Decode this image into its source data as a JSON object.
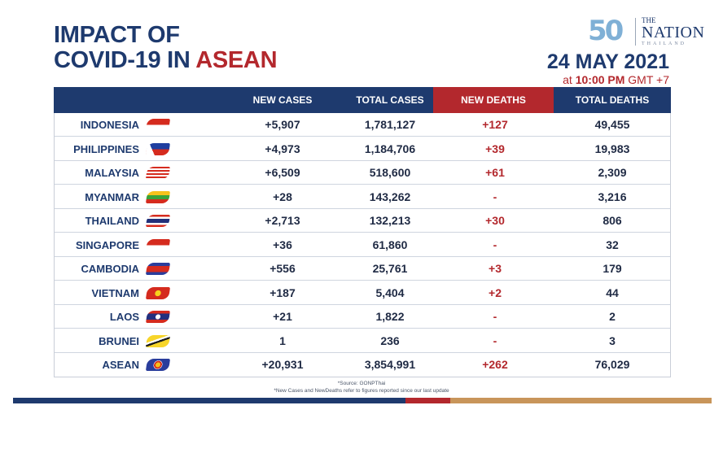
{
  "title": {
    "line1": "IMPACT OF",
    "line2_pre": "COVID-19 IN ",
    "line2_red": "ASEAN"
  },
  "logo": {
    "fifty": "50",
    "the": "THE",
    "nation": "NATION",
    "thailand": "THAILAND"
  },
  "date": {
    "main": "24 MAY 2021",
    "at": "at ",
    "time": "10:00 PM",
    "gmt": " GMT +7"
  },
  "columns": {
    "new_cases": "NEW CASES",
    "total_cases": "TOTAL CASES",
    "new_deaths": "NEW DEATHS",
    "total_deaths": "TOTAL DEATHS"
  },
  "rows": [
    {
      "country": "INDONESIA",
      "flag": "indonesia-flag-icon",
      "new_cases": "+5,907",
      "total_cases": "1,781,127",
      "new_deaths": "+127",
      "total_deaths": "49,455"
    },
    {
      "country": "PHILIPPINES",
      "flag": "philippines-flag-icon",
      "new_cases": "+4,973",
      "total_cases": "1,184,706",
      "new_deaths": "+39",
      "total_deaths": "19,983"
    },
    {
      "country": "MALAYSIA",
      "flag": "malaysia-flag-icon",
      "new_cases": "+6,509",
      "total_cases": "518,600",
      "new_deaths": "+61",
      "total_deaths": "2,309"
    },
    {
      "country": "MYANMAR",
      "flag": "myanmar-flag-icon",
      "new_cases": "+28",
      "total_cases": "143,262",
      "new_deaths": "-",
      "total_deaths": "3,216"
    },
    {
      "country": "THAILAND",
      "flag": "thailand-flag-icon",
      "new_cases": "+2,713",
      "total_cases": "132,213",
      "new_deaths": "+30",
      "total_deaths": "806"
    },
    {
      "country": "SINGAPORE",
      "flag": "singapore-flag-icon",
      "new_cases": "+36",
      "total_cases": "61,860",
      "new_deaths": "-",
      "total_deaths": "32"
    },
    {
      "country": "CAMBODIA",
      "flag": "cambodia-flag-icon",
      "new_cases": "+556",
      "total_cases": "25,761",
      "new_deaths": "+3",
      "total_deaths": "179"
    },
    {
      "country": "VIETNAM",
      "flag": "vietnam-flag-icon",
      "new_cases": "+187",
      "total_cases": "5,404",
      "new_deaths": "+2",
      "total_deaths": "44"
    },
    {
      "country": "LAOS",
      "flag": "laos-flag-icon",
      "new_cases": "+21",
      "total_cases": "1,822",
      "new_deaths": "-",
      "total_deaths": "2"
    },
    {
      "country": "BRUNEI",
      "flag": "brunei-flag-icon",
      "new_cases": "1",
      "total_cases": "236",
      "new_deaths": "-",
      "total_deaths": "3"
    },
    {
      "country": "ASEAN",
      "flag": "asean-flag-icon",
      "new_cases": "+20,931",
      "total_cases": "3,854,991",
      "new_deaths": "+262",
      "total_deaths": "76,029"
    }
  ],
  "source": "*Source: GONPThai",
  "footnote": "*New Cases and NewDeaths refer to figures reported since our last update",
  "colors": {
    "navy": "#1e3a6e",
    "red": "#b3282d",
    "gold": "#c8955a"
  }
}
